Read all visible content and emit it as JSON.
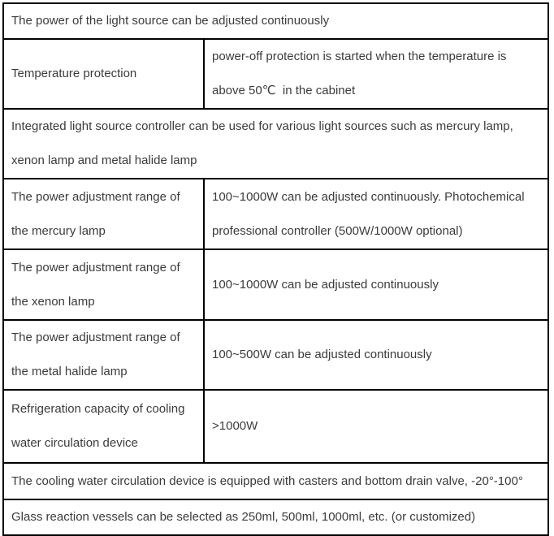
{
  "colors": {
    "text": "#3b3b3b",
    "border": "#000000",
    "background": "#ffffff"
  },
  "table": {
    "rows": [
      {
        "kind": "full",
        "text": "The power of the light source can be adjusted continuously"
      },
      {
        "kind": "pair",
        "label": "Temperature protection",
        "value": "power-off protection is started when the temperature is\nabove 50℃  in the cabinet"
      },
      {
        "kind": "full",
        "text": "Integrated light source controller can be used for various light sources such as mercury lamp,\nxenon lamp and metal halide lamp"
      },
      {
        "kind": "pair",
        "label": "The power adjustment range of\nthe mercury lamp",
        "value": "100~1000W can be adjusted continuously. Photochemical\nprofessional controller (500W/1000W optional)"
      },
      {
        "kind": "pair",
        "label": "The power adjustment range of\nthe xenon lamp",
        "value": "100~1000W can be adjusted continuously"
      },
      {
        "kind": "pair",
        "label": "The power adjustment range of\nthe metal halide lamp",
        "value": "100~500W can be adjusted continuously"
      },
      {
        "kind": "pair",
        "label": "Refrigeration capacity of cooling\nwater circulation device",
        "value": ">1000W"
      },
      {
        "kind": "full",
        "text": "The cooling water circulation device is equipped with casters and bottom drain valve, -20°-100°"
      },
      {
        "kind": "full",
        "text": "Glass reaction vessels can be selected as 250ml, 500ml, 1000ml, etc. (or customized)"
      }
    ]
  }
}
